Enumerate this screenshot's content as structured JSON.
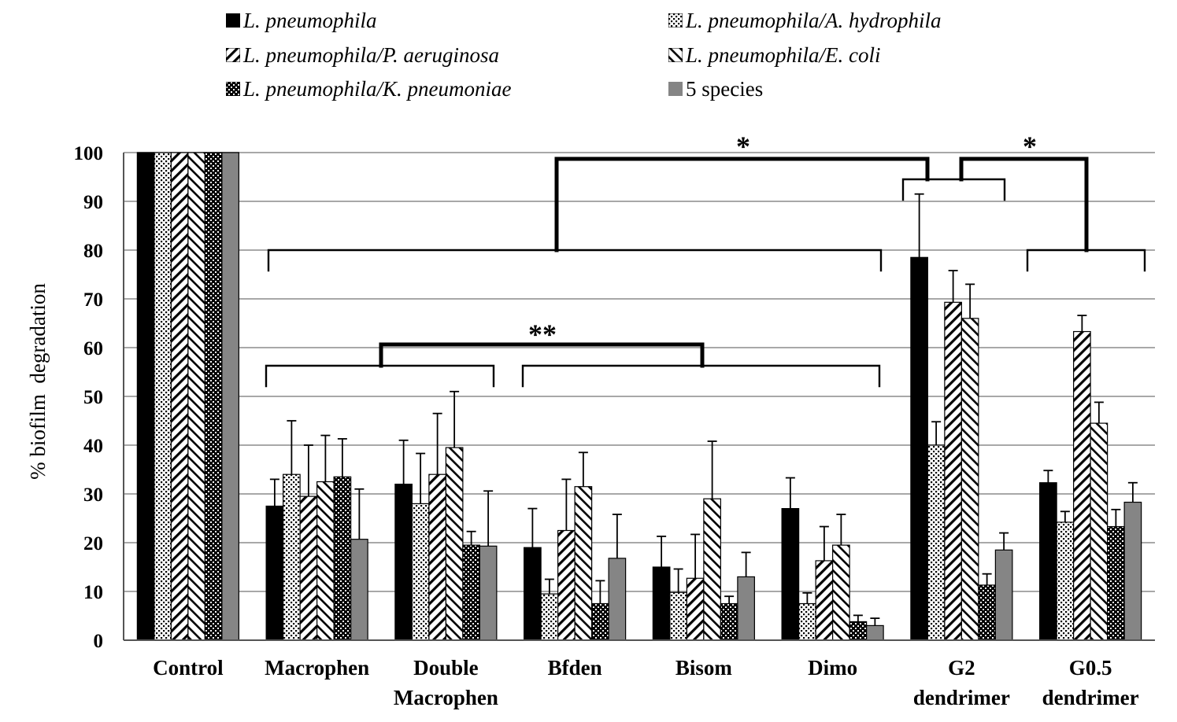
{
  "chart_data": {
    "type": "bar",
    "title": "",
    "xlabel": "",
    "ylabel": "% biofilm  degradation",
    "ylim": [
      0,
      100
    ],
    "yticks": [
      0,
      10,
      20,
      30,
      40,
      50,
      60,
      70,
      80,
      90,
      100
    ],
    "grid": true,
    "legend_position": "top",
    "categories": [
      [
        "Control"
      ],
      [
        "Macrophen"
      ],
      [
        "Double",
        "Macrophen"
      ],
      [
        "Bfden"
      ],
      [
        "Bisom"
      ],
      [
        "Dimo"
      ],
      [
        "G2",
        "dendrimer"
      ],
      [
        "G0.5",
        "dendrimer"
      ]
    ],
    "series": [
      {
        "name": "L. pneumophila",
        "italic": true,
        "pattern": "solid",
        "values": [
          100,
          27.5,
          32,
          19,
          15,
          27,
          78.5,
          32.3
        ],
        "errors": [
          0,
          5.5,
          9,
          8,
          6.3,
          6.3,
          13,
          2.5
        ]
      },
      {
        "name": "L. pneumophila/A. hydrophila",
        "italic": true,
        "pattern": "dots",
        "values": [
          100,
          34,
          28,
          9.5,
          9.8,
          7.5,
          40,
          24.2
        ],
        "errors": [
          0,
          11,
          10.3,
          3,
          4.8,
          2.2,
          4.8,
          2.2
        ]
      },
      {
        "name": "L. pneumophila/P. aeruginosa",
        "italic": true,
        "pattern": "diag-right",
        "values": [
          100,
          29.5,
          34,
          22.5,
          12.7,
          16.3,
          69.3,
          63.3
        ],
        "errors": [
          0,
          10.5,
          12.5,
          10.5,
          9,
          7,
          6.5,
          3.3
        ]
      },
      {
        "name": "L. pneumophila/E. coli",
        "italic": true,
        "pattern": "diag-left",
        "values": [
          100,
          32.5,
          39.5,
          31.5,
          29,
          19.5,
          66,
          44.5
        ],
        "errors": [
          0,
          9.5,
          11.5,
          7,
          11.8,
          6.3,
          7,
          4.3
        ]
      },
      {
        "name": "L. pneumophila/K. pneumoniae",
        "italic": true,
        "pattern": "checker",
        "values": [
          100,
          33.5,
          19.5,
          7.5,
          7.5,
          3.8,
          11.3,
          23.3
        ],
        "errors": [
          0,
          7.8,
          2.8,
          4.7,
          1.5,
          1.3,
          2.3,
          3.5
        ]
      },
      {
        "name": "5 species",
        "italic": false,
        "pattern": "gray",
        "values": [
          100,
          20.7,
          19.3,
          16.8,
          13,
          3,
          18.5,
          28.3
        ],
        "errors": [
          0,
          10.3,
          11.3,
          9,
          5,
          1.5,
          3.5,
          4
        ]
      }
    ],
    "annotations": [
      {
        "label": "*",
        "note": "G2 dendrimer vs Macrophen–Dimo"
      },
      {
        "label": "*",
        "note": "G2 dendrimer vs G0.5 dendrimer"
      },
      {
        "label": "**",
        "note": "Macrophen–Double Macrophen vs Bfden–Dimo"
      }
    ]
  },
  "colors": {
    "solid": "#000000",
    "gray": "#858585",
    "gridline": "#a8a8a8",
    "axis": "#555555"
  }
}
